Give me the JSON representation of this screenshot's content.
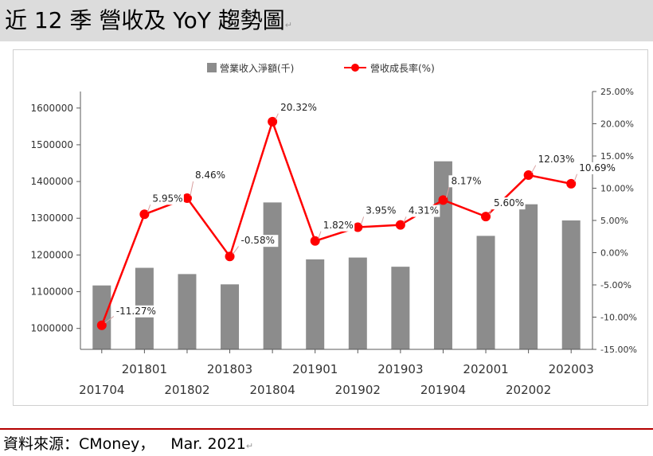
{
  "header": {
    "title": "近 12 季  營收及 YoY 趨勢圖",
    "return_mark": "↵"
  },
  "footer": {
    "source": "資料來源：CMoney，",
    "date": "Mar. 2021",
    "return_mark": "↵"
  },
  "colors": {
    "bar": "#8c8c8c",
    "line": "#ff0000",
    "axis": "#595959"
  },
  "chart_data": {
    "type": "bar+line",
    "categories": [
      "201704",
      "201801",
      "201802",
      "201803",
      "201804",
      "201901",
      "201902",
      "201903",
      "201904",
      "202001",
      "202002",
      "202003"
    ],
    "series": [
      {
        "name": "營業收入淨額(千)",
        "type": "bar",
        "axis": "left",
        "values": [
          1117000,
          1165000,
          1148000,
          1120000,
          1343000,
          1188000,
          1193000,
          1168000,
          1455000,
          1252000,
          1338000,
          1294000
        ]
      },
      {
        "name": "營收成長率(%)",
        "type": "line",
        "axis": "right",
        "values": [
          -11.27,
          5.95,
          8.46,
          -0.58,
          20.32,
          1.82,
          3.95,
          4.31,
          8.17,
          5.6,
          12.03,
          10.69
        ],
        "labels": [
          "-11.27%",
          "5.95%",
          "8.46%",
          "-0.58%",
          "20.32%",
          "1.82%",
          "3.95%",
          "4.31%",
          "8.17%",
          "5.60%",
          "12.03%",
          "10.69%"
        ]
      }
    ],
    "y_left": {
      "min": 943000,
      "max": 1645000,
      "ticks": [
        1000000,
        1100000,
        1200000,
        1300000,
        1400000,
        1500000,
        1600000
      ],
      "tick_labels": [
        "1000000",
        "1100000",
        "1200000",
        "1300000",
        "1400000",
        "1500000",
        "1600000"
      ]
    },
    "y_right": {
      "min": -15,
      "max": 25,
      "ticks": [
        -15,
        -10,
        -5,
        0,
        5,
        10,
        15,
        20,
        25
      ],
      "tick_labels": [
        "-15.00%",
        "-10.00%",
        "-5.00%",
        "0.00%",
        "5.00%",
        "10.00%",
        "15.00%",
        "20.00%",
        "25.00%"
      ]
    },
    "legend": {
      "position": "top"
    },
    "grid": false
  }
}
